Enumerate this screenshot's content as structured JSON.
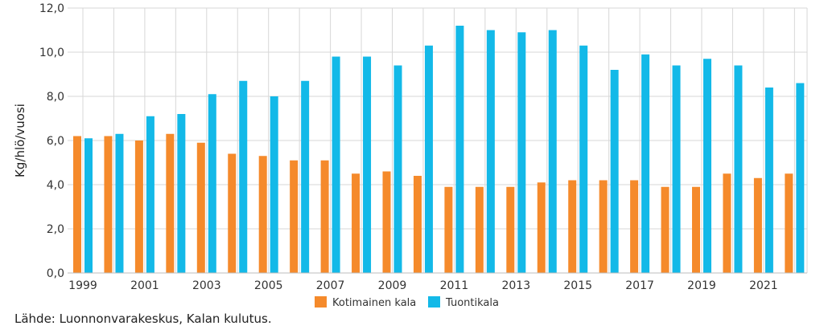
{
  "source_note": "Lähde: Luonnonvarakeskus, Kalan kulutus.",
  "chart_data": {
    "type": "bar",
    "title": "",
    "xlabel": "",
    "ylabel": "Kg/hlö/vuosi",
    "ylim": [
      0,
      12
    ],
    "y_ticks": [
      "0,0",
      "2,0",
      "4,0",
      "6,0",
      "8,0",
      "10,0",
      "12,0"
    ],
    "categories": [
      1999,
      2000,
      2001,
      2002,
      2003,
      2004,
      2005,
      2006,
      2007,
      2008,
      2009,
      2010,
      2011,
      2012,
      2013,
      2014,
      2015,
      2016,
      2017,
      2018,
      2019,
      2020,
      2021,
      2022
    ],
    "x_tick_labels": [
      "1999",
      "2001",
      "2003",
      "2005",
      "2007",
      "2009",
      "2011",
      "2013",
      "2015",
      "2017",
      "2019",
      "2021"
    ],
    "series": [
      {
        "name": "Kotimainen kala",
        "color": "#f58a2b",
        "values": [
          6.2,
          6.2,
          6.0,
          6.3,
          5.9,
          5.4,
          5.3,
          5.1,
          5.1,
          4.5,
          4.6,
          4.4,
          3.9,
          3.9,
          3.9,
          4.1,
          4.2,
          4.2,
          4.2,
          3.9,
          3.9,
          4.5,
          4.3,
          4.5
        ]
      },
      {
        "name": "Tuontikala",
        "color": "#13b9e8",
        "values": [
          6.1,
          6.3,
          7.1,
          7.2,
          8.1,
          8.7,
          8.0,
          8.7,
          9.8,
          9.8,
          9.4,
          10.3,
          11.2,
          11.0,
          10.9,
          11.0,
          10.3,
          9.2,
          9.9,
          9.4,
          9.7,
          9.4,
          8.4,
          8.6
        ]
      }
    ],
    "grid": true,
    "legend_position": "bottom-center"
  }
}
